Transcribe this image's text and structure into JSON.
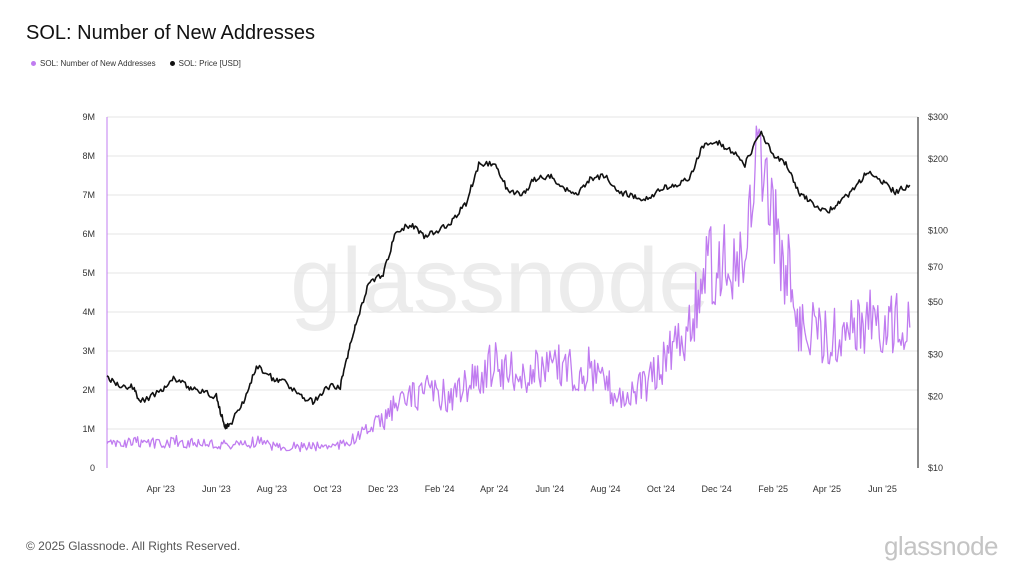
{
  "chart_data": {
    "type": "line",
    "title": "SOL: Number of New Addresses",
    "legend": [
      {
        "name": "SOL: Number of New Addresses",
        "color": "#c07cf0"
      },
      {
        "name": "SOL: Price [USD]",
        "color": "#111111"
      }
    ],
    "x_tick_labels": [
      "Apr '23",
      "Jun '23",
      "Aug '23",
      "Oct '23",
      "Dec '23",
      "Feb '24",
      "Apr '24",
      "Jun '24",
      "Aug '24",
      "Oct '24",
      "Dec '24",
      "Feb '25",
      "Apr '25",
      "Jun '25"
    ],
    "y_left": {
      "ticks": [
        "0",
        "1M",
        "2M",
        "3M",
        "4M",
        "5M",
        "6M",
        "7M",
        "8M",
        "9M"
      ],
      "range": [
        0,
        9000000
      ]
    },
    "y_right": {
      "ticks": [
        "$10",
        "$20",
        "$30",
        "$50",
        "$70",
        "$100",
        "$200",
        "$300"
      ],
      "values": [
        10,
        20,
        30,
        50,
        70,
        100,
        200,
        300
      ],
      "scale": "log",
      "range": [
        10,
        300
      ]
    },
    "x_range": [
      "2023-02-01",
      "2025-07-10"
    ],
    "grid": "horizontal",
    "series": [
      {
        "name": "SOL: Number of New Addresses",
        "axis": "left",
        "color": "#c07cf0",
        "points": [
          [
            "2023-02-01",
            600000
          ],
          [
            "2023-02-15",
            620000
          ],
          [
            "2023-03-01",
            650000
          ],
          [
            "2023-03-15",
            680000
          ],
          [
            "2023-04-01",
            600000
          ],
          [
            "2023-04-15",
            700000
          ],
          [
            "2023-05-01",
            650000
          ],
          [
            "2023-05-15",
            640000
          ],
          [
            "2023-06-01",
            600000
          ],
          [
            "2023-06-15",
            580000
          ],
          [
            "2023-07-01",
            620000
          ],
          [
            "2023-07-15",
            700000
          ],
          [
            "2023-08-01",
            580000
          ],
          [
            "2023-08-15",
            560000
          ],
          [
            "2023-09-01",
            540000
          ],
          [
            "2023-09-15",
            560000
          ],
          [
            "2023-10-01",
            580000
          ],
          [
            "2023-10-15",
            600000
          ],
          [
            "2023-11-01",
            750000
          ],
          [
            "2023-11-15",
            1000000
          ],
          [
            "2023-12-01",
            1200000
          ],
          [
            "2023-12-15",
            1600000
          ],
          [
            "2024-01-01",
            1800000
          ],
          [
            "2024-01-15",
            2000000
          ],
          [
            "2024-02-01",
            1900000
          ],
          [
            "2024-02-15",
            1800000
          ],
          [
            "2024-03-01",
            2100000
          ],
          [
            "2024-03-15",
            2300000
          ],
          [
            "2024-04-01",
            2700000
          ],
          [
            "2024-04-15",
            2500000
          ],
          [
            "2024-05-01",
            2300000
          ],
          [
            "2024-05-15",
            2500000
          ],
          [
            "2024-06-01",
            2600000
          ],
          [
            "2024-06-15",
            2700000
          ],
          [
            "2024-07-01",
            2400000
          ],
          [
            "2024-07-15",
            2600000
          ],
          [
            "2024-08-01",
            2200000
          ],
          [
            "2024-08-15",
            1900000
          ],
          [
            "2024-09-01",
            1900000
          ],
          [
            "2024-09-15",
            2200000
          ],
          [
            "2024-10-01",
            2600000
          ],
          [
            "2024-10-15",
            3400000
          ],
          [
            "2024-11-01",
            3500000
          ],
          [
            "2024-11-15",
            5000000
          ],
          [
            "2024-12-01",
            5300000
          ],
          [
            "2024-12-15",
            5000000
          ],
          [
            "2025-01-01",
            5200000
          ],
          [
            "2025-01-15",
            7500000
          ],
          [
            "2025-02-01",
            6200000
          ],
          [
            "2025-02-15",
            5200000
          ],
          [
            "2025-03-01",
            3800000
          ],
          [
            "2025-03-15",
            3500000
          ],
          [
            "2025-04-01",
            3300000
          ],
          [
            "2025-04-15",
            3500000
          ],
          [
            "2025-05-01",
            3600000
          ],
          [
            "2025-05-15",
            3800000
          ],
          [
            "2025-06-01",
            3500000
          ],
          [
            "2025-06-15",
            3700000
          ],
          [
            "2025-07-01",
            3600000
          ]
        ]
      },
      {
        "name": "SOL: Price [USD]",
        "axis": "right",
        "color": "#111111",
        "points": [
          [
            "2023-02-01",
            24
          ],
          [
            "2023-02-15",
            22
          ],
          [
            "2023-03-01",
            22
          ],
          [
            "2023-03-10",
            19
          ],
          [
            "2023-04-01",
            21
          ],
          [
            "2023-04-15",
            24
          ],
          [
            "2023-05-01",
            22
          ],
          [
            "2023-05-15",
            21
          ],
          [
            "2023-06-01",
            20
          ],
          [
            "2023-06-10",
            15
          ],
          [
            "2023-06-15",
            15
          ],
          [
            "2023-07-01",
            19
          ],
          [
            "2023-07-15",
            27
          ],
          [
            "2023-08-01",
            24
          ],
          [
            "2023-08-15",
            23
          ],
          [
            "2023-09-01",
            20
          ],
          [
            "2023-09-15",
            19
          ],
          [
            "2023-10-01",
            22
          ],
          [
            "2023-10-15",
            22
          ],
          [
            "2023-10-25",
            32
          ],
          [
            "2023-11-01",
            40
          ],
          [
            "2023-11-15",
            60
          ],
          [
            "2023-12-01",
            65
          ],
          [
            "2023-12-15",
            100
          ],
          [
            "2024-01-01",
            105
          ],
          [
            "2024-01-15",
            95
          ],
          [
            "2024-02-01",
            100
          ],
          [
            "2024-02-15",
            110
          ],
          [
            "2024-03-01",
            130
          ],
          [
            "2024-03-15",
            190
          ],
          [
            "2024-04-01",
            190
          ],
          [
            "2024-04-15",
            150
          ],
          [
            "2024-05-01",
            140
          ],
          [
            "2024-05-15",
            165
          ],
          [
            "2024-06-01",
            170
          ],
          [
            "2024-06-15",
            150
          ],
          [
            "2024-07-01",
            140
          ],
          [
            "2024-07-15",
            165
          ],
          [
            "2024-08-01",
            170
          ],
          [
            "2024-08-15",
            145
          ],
          [
            "2024-09-01",
            140
          ],
          [
            "2024-09-15",
            135
          ],
          [
            "2024-10-01",
            150
          ],
          [
            "2024-10-15",
            155
          ],
          [
            "2024-11-01",
            165
          ],
          [
            "2024-11-15",
            225
          ],
          [
            "2024-12-01",
            235
          ],
          [
            "2024-12-15",
            220
          ],
          [
            "2025-01-01",
            190
          ],
          [
            "2025-01-19",
            260
          ],
          [
            "2025-02-01",
            210
          ],
          [
            "2025-02-15",
            190
          ],
          [
            "2025-03-01",
            145
          ],
          [
            "2025-03-15",
            130
          ],
          [
            "2025-04-01",
            120
          ],
          [
            "2025-04-15",
            130
          ],
          [
            "2025-05-01",
            150
          ],
          [
            "2025-05-15",
            175
          ],
          [
            "2025-06-01",
            160
          ],
          [
            "2025-06-15",
            145
          ],
          [
            "2025-07-01",
            155
          ]
        ]
      }
    ],
    "watermark": "glassnode"
  },
  "footer": {
    "copyright": "© 2025 Glassnode. All Rights Reserved.",
    "brand": "glassnode"
  }
}
